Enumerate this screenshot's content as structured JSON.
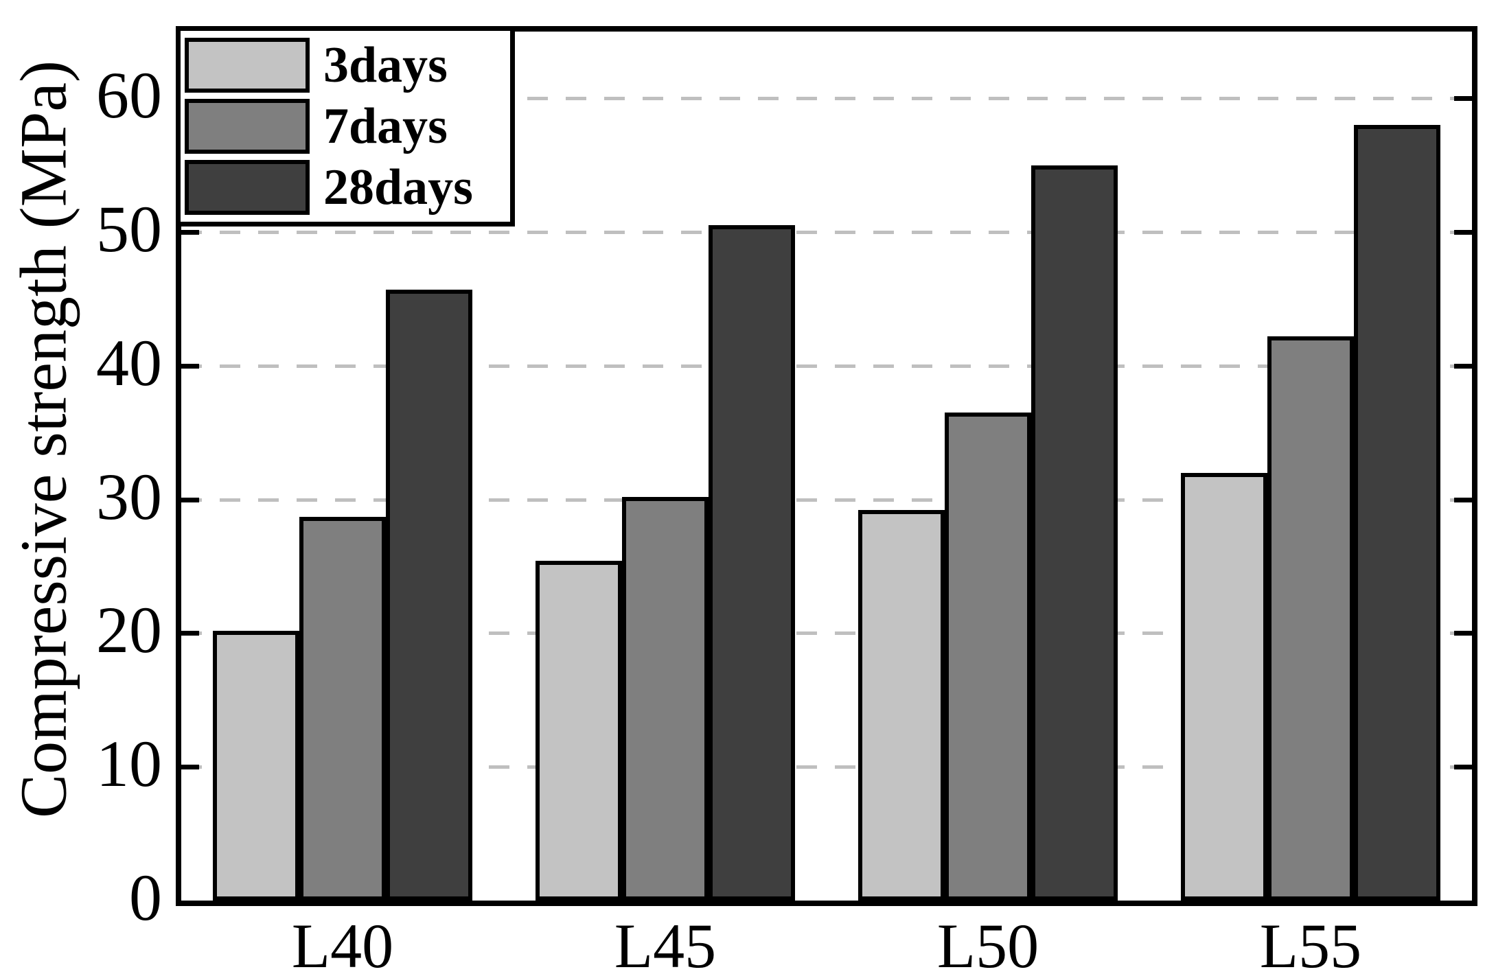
{
  "page": {
    "background": "#ffffff"
  },
  "chart_data": {
    "type": "bar",
    "title": "",
    "xlabel": "",
    "ylabel": "Compressive strength (MPa)",
    "categories": [
      "L40",
      "L45",
      "L50",
      "L55"
    ],
    "series": [
      {
        "name": "3days",
        "color": "#c3c3c3",
        "values": [
          20.2,
          25.4,
          29.2,
          32.0
        ]
      },
      {
        "name": "7days",
        "color": "#7f7f7f",
        "values": [
          28.7,
          30.2,
          36.5,
          42.2
        ]
      },
      {
        "name": "28days",
        "color": "#3f3f3f",
        "values": [
          45.7,
          50.5,
          55.0,
          58.0
        ]
      }
    ],
    "ylim": [
      0,
      65
    ],
    "yticks": [
      0,
      10,
      20,
      30,
      40,
      50,
      60
    ],
    "grid": {
      "axis": "y",
      "levels": [
        10,
        20,
        30,
        40,
        50,
        60
      ],
      "style": "dashed",
      "color": "#bfbfbf"
    },
    "legend": {
      "position": "upper-left",
      "entries": [
        "3days",
        "7days",
        "28days"
      ]
    },
    "styles": {
      "bar_outline_color": "#000000",
      "axis_color": "#000000",
      "background": "#ffffff"
    }
  }
}
